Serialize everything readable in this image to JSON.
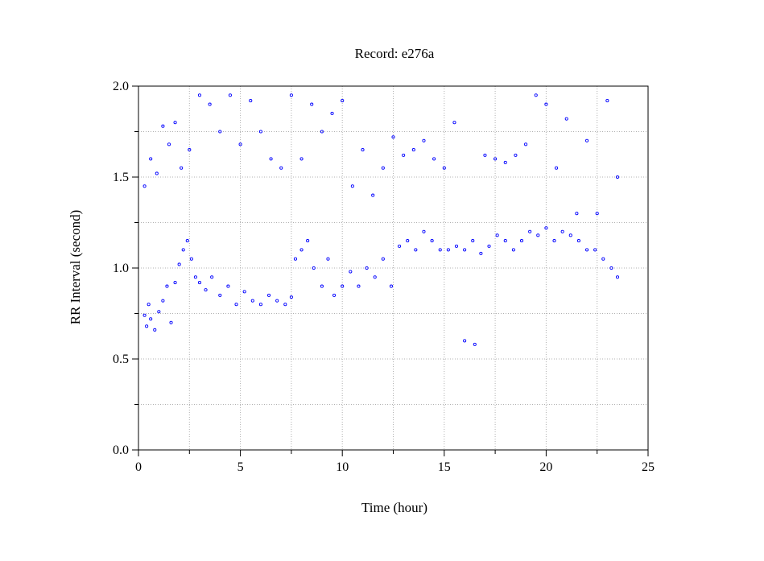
{
  "chart_data": {
    "type": "scatter",
    "title": "Record:  e276a",
    "xlabel": "Time (hour)",
    "ylabel": "RR Interval (second)",
    "xlim": [
      0,
      25
    ],
    "ylim": [
      0.0,
      2.0
    ],
    "x_ticks": [
      0,
      5,
      10,
      15,
      20,
      25
    ],
    "x_tick_labels": [
      "0",
      "5",
      "10",
      "15",
      "20",
      "25"
    ],
    "y_ticks": [
      0.0,
      0.5,
      1.0,
      1.5,
      2.0
    ],
    "y_tick_labels": [
      "0.0",
      "0.5",
      "1.0",
      "1.5",
      "2.0"
    ],
    "grid": true,
    "marker_color": "#0000ff",
    "series": [
      {
        "x": [
          0.3,
          0.4,
          0.5,
          0.6,
          0.8,
          1.0,
          1.2,
          1.4,
          1.6,
          1.8,
          2.0,
          2.2,
          2.4,
          2.6,
          2.8,
          3.0,
          3.3,
          3.6,
          4.0,
          4.4,
          4.8,
          5.2,
          5.6,
          6.0,
          6.4,
          6.8,
          7.2,
          7.5,
          7.7,
          8.0,
          8.3,
          8.6,
          9.0,
          9.3,
          9.6,
          10.0,
          10.4,
          10.8,
          11.2,
          11.6,
          12.0,
          12.4,
          12.8,
          13.2,
          13.6,
          14.0,
          14.4,
          14.8,
          15.2,
          15.6,
          16.0,
          16.4,
          16.8,
          17.2,
          17.6,
          18.0,
          18.4,
          18.8,
          19.2,
          19.6,
          20.0,
          20.4,
          20.8,
          21.2,
          21.6,
          22.0,
          22.4,
          22.8,
          23.2,
          23.5,
          0.3,
          0.6,
          0.9,
          1.2,
          1.5,
          1.8,
          2.1,
          2.5,
          3.0,
          3.5,
          4.0,
          4.5,
          5.0,
          5.5,
          6.0,
          6.5,
          7.0,
          7.5,
          8.0,
          8.5,
          9.0,
          9.5,
          10.0,
          10.5,
          11.0,
          11.5,
          12.0,
          12.5,
          13.0,
          13.5,
          14.0,
          14.5,
          15.0,
          15.5,
          16.0,
          16.5,
          17.0,
          17.5,
          18.0,
          18.5,
          19.0,
          19.5,
          20.0,
          20.5,
          21.0,
          21.5,
          22.0,
          22.5,
          23.0,
          23.5
        ],
        "y": [
          0.74,
          0.68,
          0.8,
          0.72,
          0.66,
          0.76,
          0.82,
          0.9,
          0.7,
          0.92,
          1.02,
          1.1,
          1.15,
          1.05,
          0.95,
          0.92,
          0.88,
          0.95,
          0.85,
          0.9,
          0.8,
          0.87,
          0.82,
          0.8,
          0.85,
          0.82,
          0.8,
          0.84,
          1.05,
          1.1,
          1.15,
          1.0,
          0.9,
          1.05,
          0.85,
          0.9,
          0.98,
          0.9,
          1.0,
          0.95,
          1.05,
          0.9,
          1.12,
          1.15,
          1.1,
          1.2,
          1.15,
          1.1,
          1.1,
          1.12,
          1.1,
          1.15,
          1.08,
          1.12,
          1.18,
          1.15,
          1.1,
          1.15,
          1.2,
          1.18,
          1.22,
          1.15,
          1.2,
          1.18,
          1.15,
          1.1,
          1.1,
          1.05,
          1.0,
          0.95,
          1.45,
          1.6,
          1.52,
          1.78,
          1.68,
          1.8,
          1.55,
          1.65,
          1.95,
          1.9,
          1.75,
          1.95,
          1.68,
          1.92,
          1.75,
          1.6,
          1.55,
          1.95,
          1.6,
          1.9,
          1.75,
          1.85,
          1.92,
          1.45,
          1.65,
          1.4,
          1.55,
          1.72,
          1.62,
          1.65,
          1.7,
          1.6,
          1.55,
          1.8,
          0.6,
          0.58,
          1.62,
          1.6,
          1.58,
          1.62,
          1.68,
          1.95,
          1.9,
          1.55,
          1.82,
          1.3,
          1.7,
          1.3,
          1.92,
          1.5
        ]
      }
    ]
  }
}
